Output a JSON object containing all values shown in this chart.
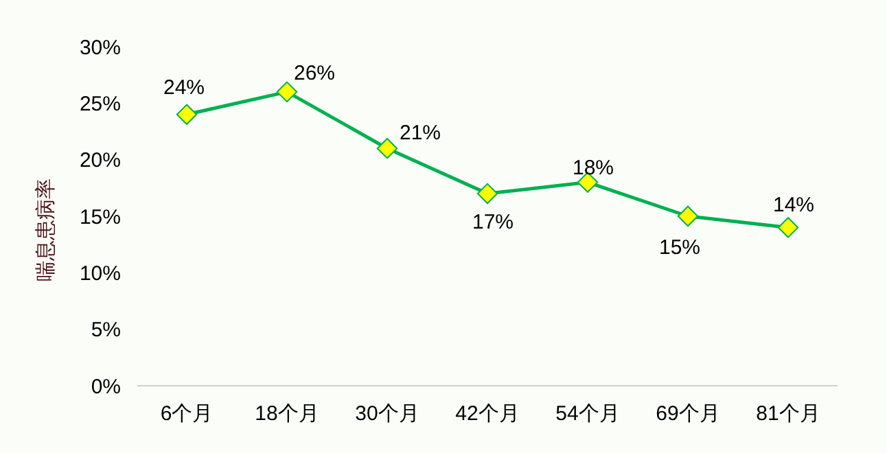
{
  "chart_data": {
    "type": "line",
    "ylabel": "喘息患病率",
    "categories": [
      "6个月",
      "18个月",
      "30个月",
      "42个月",
      "54个月",
      "69个月",
      "81个月"
    ],
    "series": [
      {
        "color": "#00b050",
        "values": [
          24,
          26,
          21,
          17,
          18,
          15,
          14
        ]
      }
    ],
    "value_labels": [
      "24%",
      "26%",
      "21%",
      "17%",
      "18%",
      "15%",
      "14%"
    ],
    "ylim": [
      0,
      30
    ],
    "yticks": [
      {
        "value": 0,
        "label": "0%"
      },
      {
        "value": 5,
        "label": "5%"
      },
      {
        "value": 10,
        "label": "10%"
      },
      {
        "value": 15,
        "label": "15%"
      },
      {
        "value": 20,
        "label": "20%"
      },
      {
        "value": 25,
        "label": "25%"
      },
      {
        "value": 30,
        "label": "30%"
      }
    ],
    "marker": "diamond",
    "line_style": "solid"
  }
}
